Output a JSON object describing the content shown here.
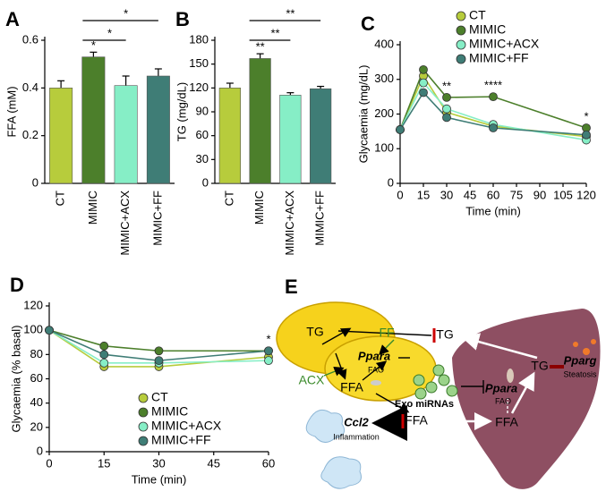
{
  "chart_data": [
    {
      "type": "bar",
      "panel": "A",
      "ylabel": "FFA (mM)",
      "categories": [
        "CT",
        "MIMIC",
        "MIMIC+ACX",
        "MIMIC+FF"
      ],
      "values": [
        0.4,
        0.53,
        0.41,
        0.45
      ],
      "errors": [
        0.03,
        0.02,
        0.04,
        0.03
      ],
      "colors": [
        "#b7cc3c",
        "#4c7f2b",
        "#86eec6",
        "#3f7d76"
      ],
      "ylim": [
        0,
        0.6
      ],
      "yticks": [
        0,
        0.2,
        0.4,
        0.6
      ],
      "annotations": [
        "*",
        "*",
        "*"
      ]
    },
    {
      "type": "bar",
      "panel": "B",
      "ylabel": "TG (mg/dL)",
      "categories": [
        "CT",
        "MIMIC",
        "MIMIC+ACX",
        "MIMIC+FF"
      ],
      "values": [
        120,
        157,
        111,
        119
      ],
      "errors": [
        6,
        6,
        3,
        3
      ],
      "colors": [
        "#b7cc3c",
        "#4c7f2b",
        "#86eec6",
        "#3f7d76"
      ],
      "ylim": [
        0,
        180
      ],
      "yticks": [
        0,
        30,
        60,
        90,
        120,
        150,
        180
      ],
      "annotations": [
        "**",
        "**",
        "**"
      ]
    },
    {
      "type": "line",
      "panel": "C",
      "xlabel": "Time (min)",
      "ylabel": "Glycaemia (mg/dL)",
      "x": [
        0,
        15,
        30,
        60,
        120
      ],
      "xlim": [
        0,
        120
      ],
      "xticks": [
        0,
        15,
        30,
        45,
        60,
        75,
        90,
        105,
        120
      ],
      "ylim": [
        0,
        400
      ],
      "yticks": [
        0,
        100,
        200,
        300,
        400
      ],
      "series": [
        {
          "name": "CT",
          "color": "#b7cc3c",
          "values": [
            155,
            310,
            205,
            165,
            135
          ]
        },
        {
          "name": "MIMIC",
          "color": "#4c7f2b",
          "values": [
            155,
            328,
            248,
            250,
            160
          ]
        },
        {
          "name": "MIMIC+ACX",
          "color": "#86eec6",
          "values": [
            155,
            290,
            215,
            170,
            125
          ]
        },
        {
          "name": "MIMIC+FF",
          "color": "#3f7d76",
          "values": [
            155,
            262,
            190,
            160,
            140
          ]
        }
      ],
      "annotations": [
        "**",
        "****",
        "*"
      ]
    },
    {
      "type": "line",
      "panel": "D",
      "xlabel": "Time (min)",
      "ylabel": "Glycaemia (% basal)",
      "x": [
        0,
        15,
        30,
        60
      ],
      "xlim": [
        0,
        60
      ],
      "xticks": [
        0,
        15,
        30,
        45,
        60
      ],
      "ylim": [
        0,
        120
      ],
      "yticks": [
        0,
        20,
        40,
        60,
        80,
        100,
        120
      ],
      "series": [
        {
          "name": "CT",
          "color": "#b7cc3c",
          "values": [
            100,
            70,
            70,
            78
          ]
        },
        {
          "name": "MIMIC",
          "color": "#4c7f2b",
          "values": [
            100,
            87,
            83,
            83
          ]
        },
        {
          "name": "MIMIC+ACX",
          "color": "#86eec6",
          "values": [
            100,
            73,
            73,
            75
          ]
        },
        {
          "name": "MIMIC+FF",
          "color": "#3f7d76",
          "values": [
            100,
            80,
            75,
            83
          ]
        }
      ],
      "annotations": [
        "*"
      ]
    }
  ],
  "diagram": {
    "panel": "E",
    "labels": [
      "TG",
      "FF",
      "Ppara",
      "FAO",
      "ACX",
      "FFA",
      "Exo miRNAs",
      "Ccl2",
      "Inflammation",
      "TG",
      "FFA",
      "TG",
      "Pparg",
      "Steatosis",
      "Ppara",
      "FAO",
      "FFA"
    ]
  }
}
